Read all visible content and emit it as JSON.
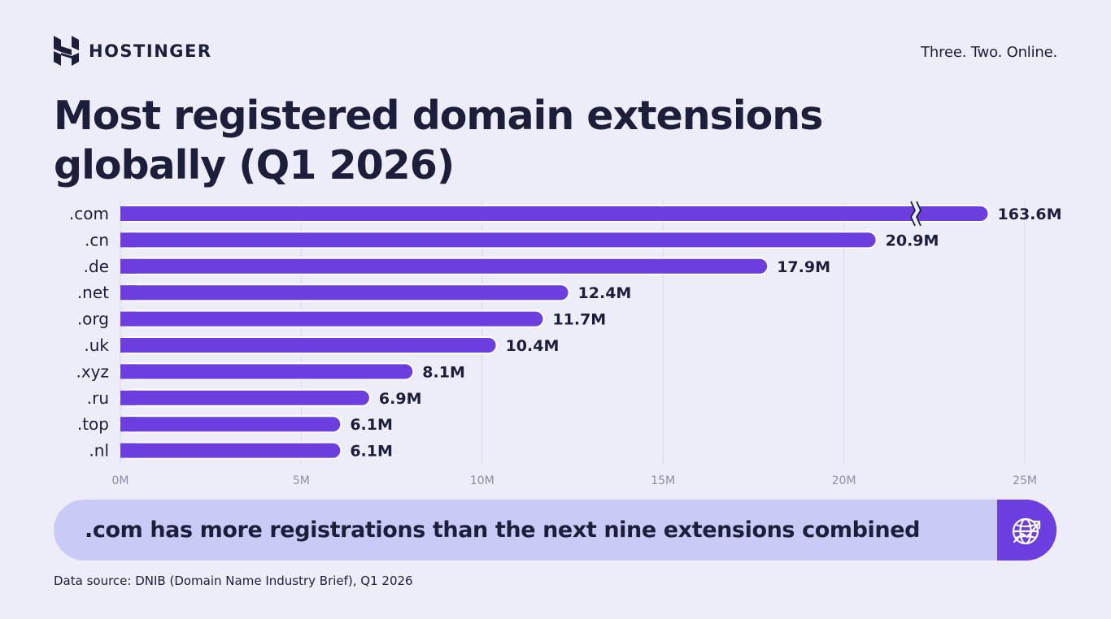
{
  "brand": {
    "name": "HOSTINGER",
    "tagline": "Three. Two. Online."
  },
  "colors": {
    "background": "#EDEDFA",
    "bar": "#6C3EE0",
    "text": "#1D1E3A",
    "callout_bg": "#CACAF6",
    "grid": "#D6D6E6",
    "tick_label": "#8C8CA8"
  },
  "chart_data": {
    "type": "bar",
    "orientation": "horizontal",
    "title": "Most registered domain extensions globally (Q1 2026)",
    "categories": [
      ".com",
      ".cn",
      ".de",
      ".net",
      ".org",
      ".uk",
      ".xyz",
      ".ru",
      ".top",
      ".nl"
    ],
    "values": [
      163.6,
      20.9,
      17.9,
      12.4,
      11.7,
      10.4,
      8.1,
      6.9,
      6.1,
      6.1
    ],
    "data_labels": [
      "163.6M",
      "20.9M",
      "17.9M",
      "12.4M",
      "11.7M",
      "10.4M",
      "8.1M",
      "6.9M",
      "6.1M",
      "6.1M"
    ],
    "unit": "M",
    "xlim": [
      0,
      25
    ],
    "xticks": [
      0,
      5,
      10,
      15,
      20,
      25
    ],
    "xtick_labels": [
      "0M",
      "5M",
      "10M",
      "15M",
      "20M",
      "25M"
    ],
    "axis_break": true,
    "grid": true,
    "legend": "none"
  },
  "callout": {
    "text": ".com has more registrations than the next nine extensions combined",
    "icon": "globe-growth-icon"
  },
  "footer": {
    "source": "Data source: DNIB (Domain Name Industry Brief), Q1 2026"
  }
}
